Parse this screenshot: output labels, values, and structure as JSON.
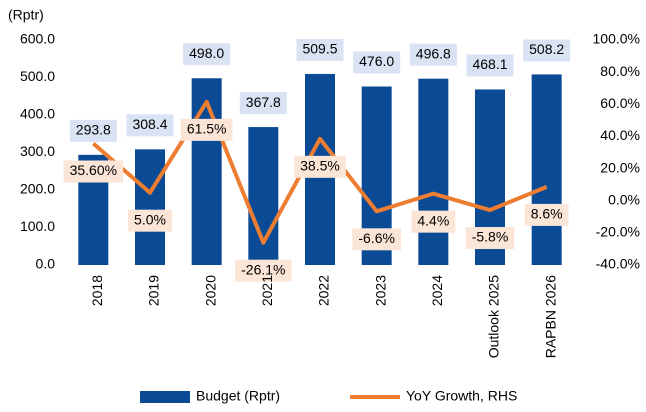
{
  "chart_data": {
    "type": "bar-line",
    "y_label": "(Rptr)",
    "categories": [
      "2018",
      "2019",
      "2020",
      "2021",
      "2022",
      "2023",
      "2024",
      "Outlook 2025",
      "RAPBN 2026"
    ],
    "series": [
      {
        "name": "Budget (Rptr)",
        "type": "bar",
        "color": "#0b4a94",
        "values": [
          293.8,
          308.4,
          498.0,
          367.8,
          509.5,
          476.0,
          496.8,
          468.1,
          508.2
        ],
        "value_labels": [
          "293.8",
          "308.4",
          "498.0",
          "367.8",
          "509.5",
          "476.0",
          "496.8",
          "468.1",
          "508.2"
        ]
      },
      {
        "name": "YoY Growth, RHS",
        "type": "line",
        "axis": "y2",
        "color": "#ed7d31",
        "values": [
          35.6,
          5.0,
          61.5,
          -26.1,
          38.5,
          -6.6,
          4.4,
          -5.8,
          8.6
        ],
        "value_labels": [
          "35.60%",
          "5.0%",
          "61.5%",
          "-26.1%",
          "38.5%",
          "-6.6%",
          "4.4%",
          "-5.8%",
          "8.6%"
        ]
      }
    ],
    "ylim": [
      0,
      600
    ],
    "yticks": [
      {
        "value": 0,
        "label": "0.0"
      },
      {
        "value": 100,
        "label": "100.0"
      },
      {
        "value": 200,
        "label": "200.0"
      },
      {
        "value": 300,
        "label": "300.0"
      },
      {
        "value": 400,
        "label": "400.0"
      },
      {
        "value": 500,
        "label": "500.0"
      },
      {
        "value": 600,
        "label": "600.0"
      }
    ],
    "y2lim": [
      -40,
      100
    ],
    "y2ticks": [
      {
        "value": -40,
        "label": "-40.0%"
      },
      {
        "value": -20,
        "label": "-20.0%"
      },
      {
        "value": 0,
        "label": "0.0%"
      },
      {
        "value": 20,
        "label": "20.0%"
      },
      {
        "value": 40,
        "label": "40.0%"
      },
      {
        "value": 60,
        "label": "60.0%"
      },
      {
        "value": 80,
        "label": "80.0%"
      },
      {
        "value": 100,
        "label": "100.0%"
      }
    ],
    "legend": "bottom"
  }
}
